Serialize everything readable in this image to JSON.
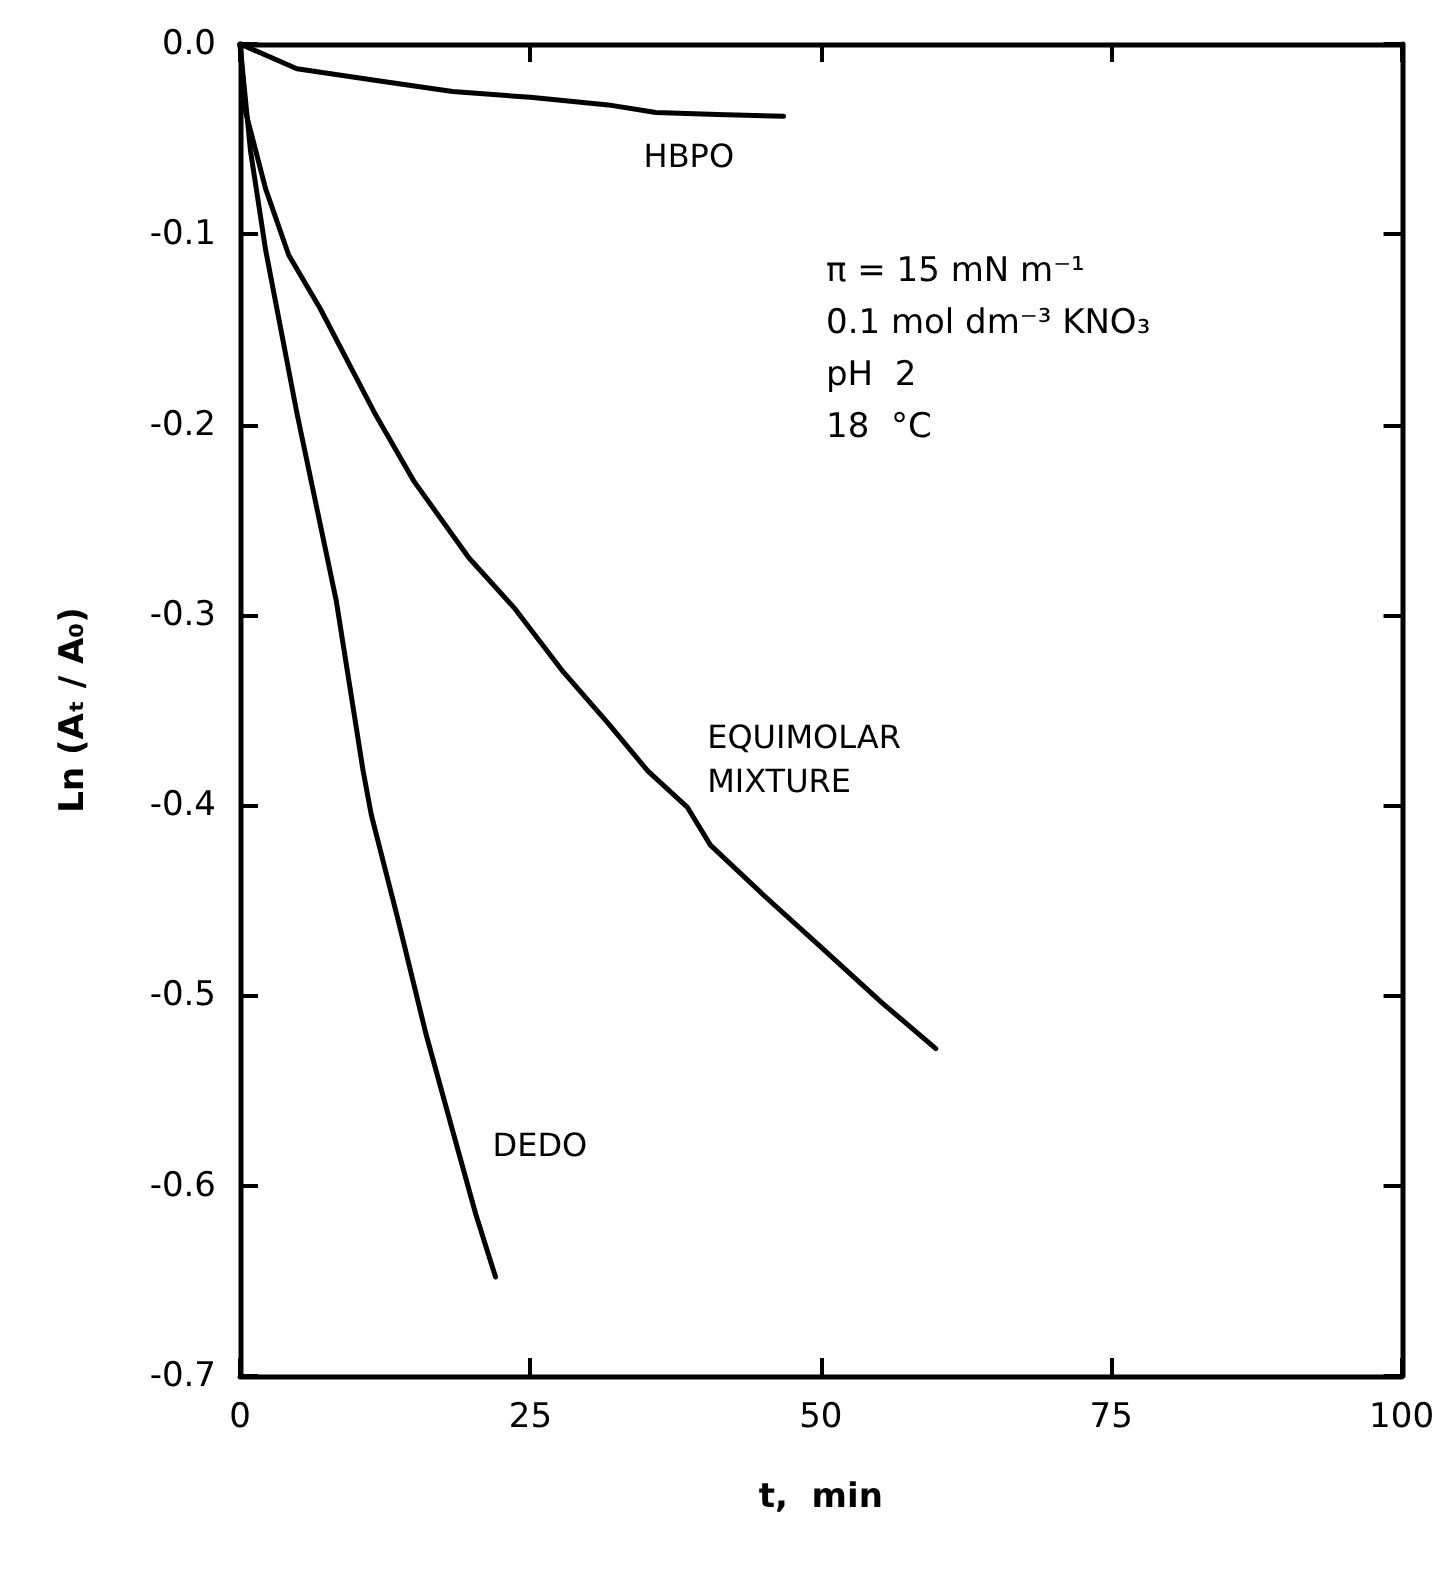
{
  "chart_data": {
    "type": "line",
    "xlabel": "t,  min",
    "ylabel": "Ln (Aₜ / A₀)",
    "xlim": [
      0,
      100
    ],
    "xticks": [
      0,
      25,
      50,
      75,
      100
    ],
    "ylim": [
      -0.7,
      0
    ],
    "yticks": [
      {
        "value": 0,
        "label": "0.0"
      },
      {
        "value": -0.1,
        "label": "-0.1"
      },
      {
        "value": -0.2,
        "label": "-0.2"
      },
      {
        "value": -0.3,
        "label": "-0.3"
      },
      {
        "value": -0.4,
        "label": "-0.4"
      },
      {
        "value": -0.5,
        "label": "-0.5"
      },
      {
        "value": -0.6,
        "label": "-0.6"
      },
      {
        "value": -0.7,
        "label": "-0.7"
      }
    ],
    "grid": false,
    "legend": false,
    "marker": "none",
    "line_style": "solid",
    "annotations": [
      "π = 15 mN m⁻¹",
      "0.1 mol dm⁻³ KNO₃",
      "pH  2",
      "18  °C"
    ],
    "series": [
      {
        "name": "HBPO",
        "color": "#000000",
        "x": [
          0,
          4.9,
          11.6,
          18.3,
          25,
          31.7,
          35.8,
          41.1,
          46.8
        ],
        "values": [
          0,
          -0.013,
          -0.019,
          -0.025,
          -0.028,
          -0.032,
          -0.036,
          -0.037,
          -0.038
        ]
      },
      {
        "name": "EQUIMOLAR\nMIXTURE",
        "color": "#000000",
        "x": [
          0,
          0.5,
          2.2,
          4.2,
          6.9,
          11.6,
          15,
          19.7,
          23.7,
          27.7,
          31.7,
          35.1,
          38.5,
          40.5,
          45.2,
          49.9,
          55.3,
          59.9
        ],
        "values": [
          0,
          -0.036,
          -0.076,
          -0.111,
          -0.139,
          -0.194,
          -0.23,
          -0.27,
          -0.297,
          -0.329,
          -0.357,
          -0.382,
          -0.401,
          -0.421,
          -0.448,
          -0.474,
          -0.504,
          -0.528
        ]
      },
      {
        "name": "DEDO",
        "color": "#000000",
        "x": [
          0,
          0.9,
          2.2,
          4.9,
          8.3,
          10.6,
          11.3,
          13.6,
          16,
          18.3,
          20.3,
          22
        ],
        "values": [
          0,
          -0.056,
          -0.108,
          -0.194,
          -0.293,
          -0.382,
          -0.405,
          -0.46,
          -0.52,
          -0.571,
          -0.615,
          -0.648
        ]
      }
    ]
  }
}
